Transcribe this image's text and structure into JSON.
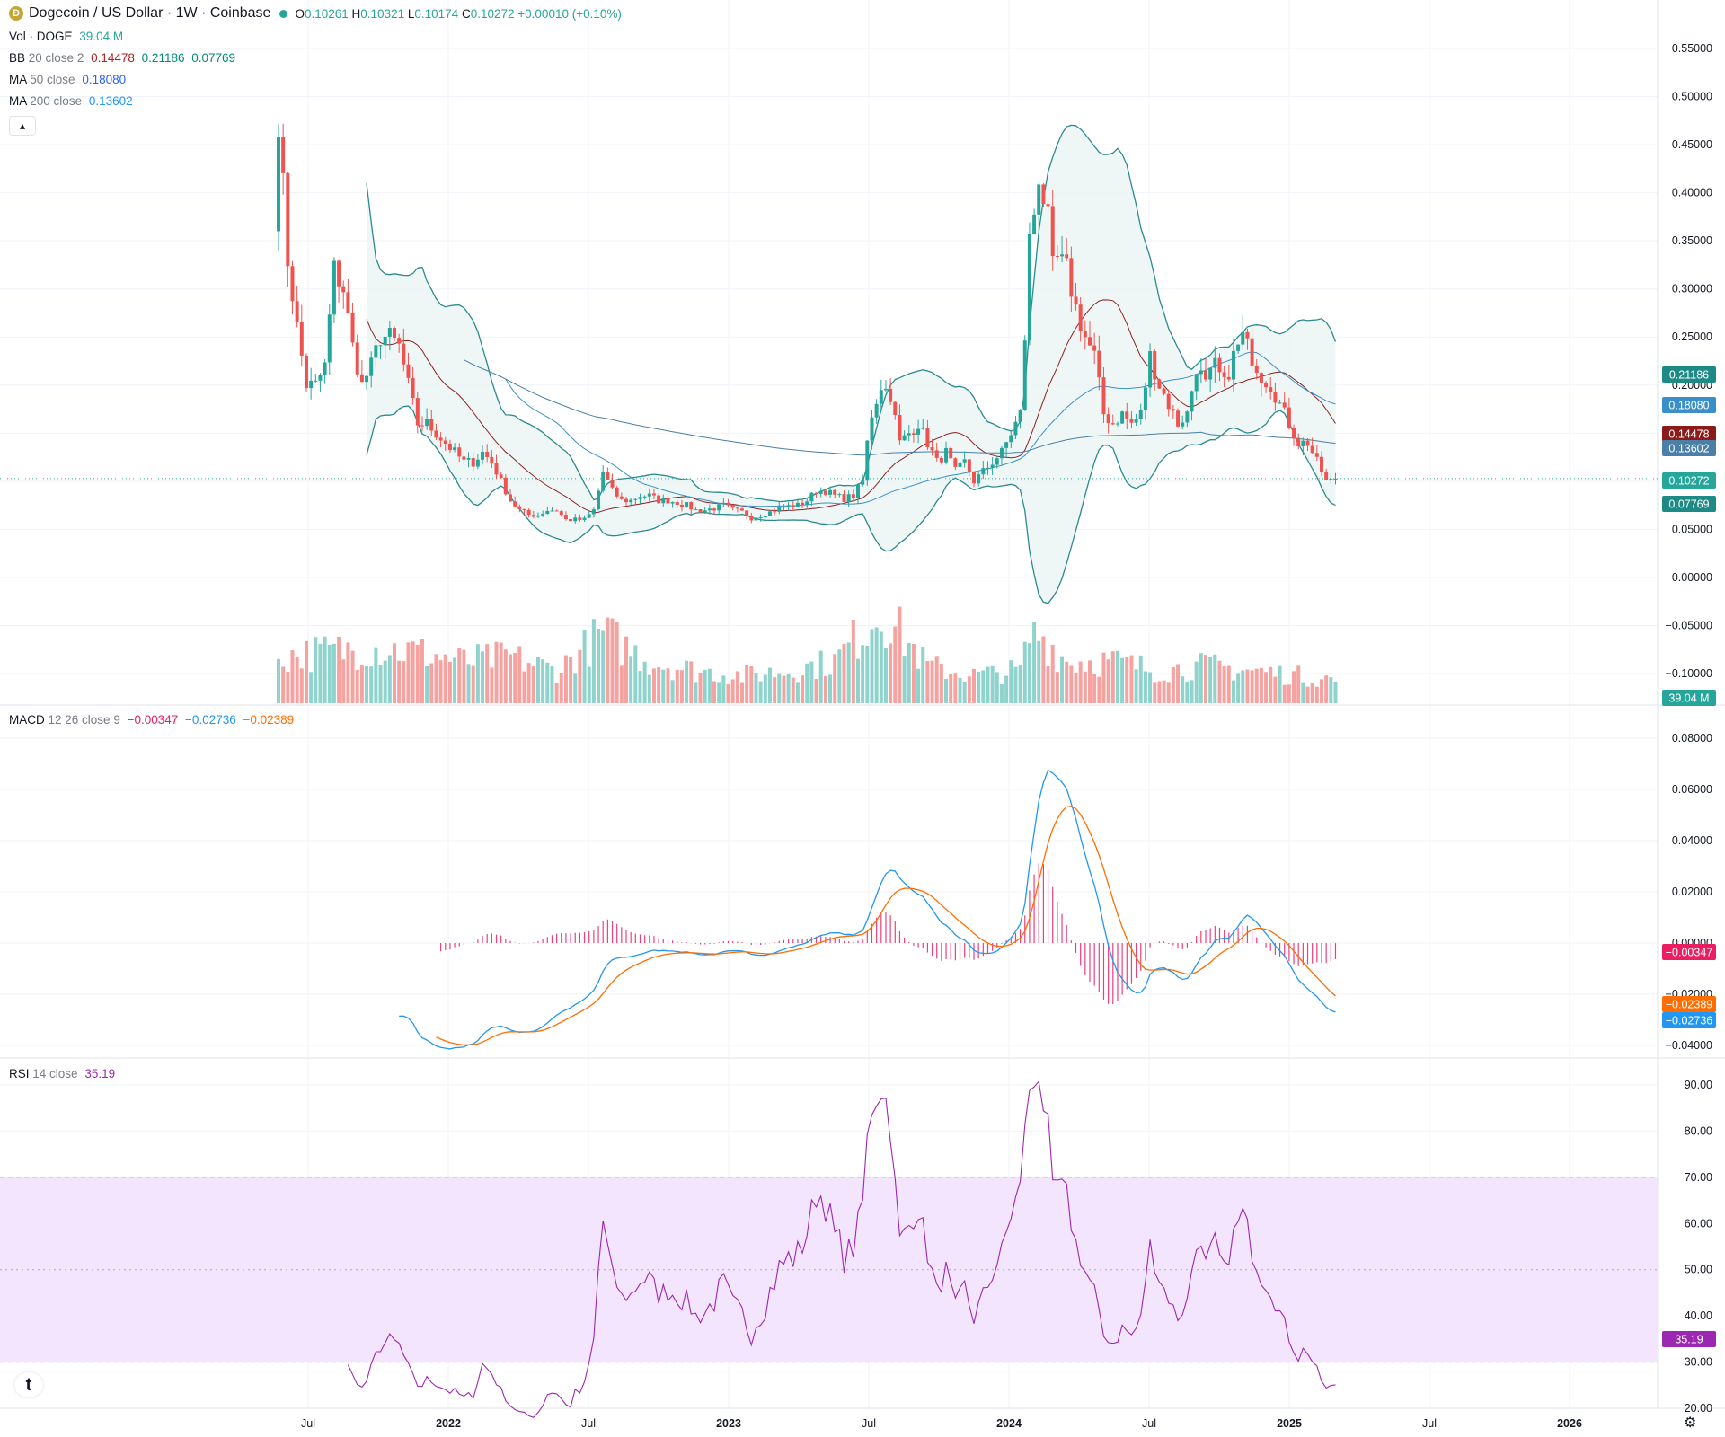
{
  "header": {
    "coin_icon": "dogecoin-icon",
    "title": "Dogecoin / US Dollar · 1W · Coinbase",
    "open_label": "O",
    "open": "0.10261",
    "high_label": "H",
    "high": "0.10321",
    "low_label": "L",
    "low": "0.10174",
    "close_label": "C",
    "close": "0.10272",
    "change": "+0.00010 (+0.10%)"
  },
  "indicators": {
    "vol": {
      "name": "Vol · DOGE",
      "value": "39.04 M"
    },
    "bb": {
      "name": "BB",
      "params": "20 close 2",
      "basis": "0.14478",
      "upper": "0.21186",
      "lower": "0.07769"
    },
    "ma50": {
      "name": "MA",
      "params": "50 close",
      "value": "0.18080"
    },
    "ma200": {
      "name": "MA",
      "params": "200 close",
      "value": "0.13602"
    },
    "macd": {
      "name": "MACD",
      "params": "12 26 close 9",
      "hist": "−0.00347",
      "macd": "−0.02736",
      "signal": "−0.02389"
    },
    "rsi": {
      "name": "RSI",
      "params": "14 close",
      "value": "35.19"
    }
  },
  "collapse_icon": "chevron-up-icon",
  "logo_icon": "tradingview-logo-icon",
  "settings_icon": "gear-icon",
  "colors": {
    "up": "#26a69a",
    "down": "#ef5350",
    "bb_band": "#2a8a8e",
    "bb_basis": "#8b2020",
    "ma50": "#2962ff",
    "ma200": "#2196f3",
    "macd": "#2196f3",
    "signal": "#ff6d00",
    "hist": "#e91e63",
    "rsi": "#9c27b0",
    "rsi_band": "#f3e5fd"
  },
  "chart_data": {
    "type": "candlestick",
    "x_ticks": [
      "Jul",
      "2022",
      "Jul",
      "2023",
      "Jul",
      "2024",
      "Jul",
      "2025",
      "Jul",
      "2026"
    ],
    "price_axis": {
      "min": -0.1,
      "max": 0.55,
      "ticks": [
        "0.55000",
        "0.50000",
        "0.45000",
        "0.40000",
        "0.35000",
        "0.30000",
        "0.25000",
        "0.20000",
        "0.15000",
        "0.10000",
        "0.05000",
        "0.00000",
        "−0.05000",
        "−0.10000"
      ]
    },
    "price_labels": {
      "bb_upper": "0.21186",
      "ma50": "0.18080",
      "bb_basis": "0.14478",
      "ma200": "0.13602",
      "last": "0.10272",
      "bb_lower": "0.07769",
      "volume": "39.04 M"
    },
    "macd_axis": {
      "min": -0.04,
      "max": 0.08,
      "ticks": [
        "0.08000",
        "0.06000",
        "0.04000",
        "0.02000",
        "0.00000",
        "−0.02000",
        "−0.04000"
      ]
    },
    "macd_labels": {
      "hist": "−0.00347",
      "signal": "−0.02389",
      "macd": "−0.02736"
    },
    "rsi_axis": {
      "min": 20,
      "max": 90,
      "ticks": [
        "90.00",
        "80.00",
        "70.00",
        "60.00",
        "50.00",
        "40.00",
        "30.00",
        "20.00"
      ],
      "band": [
        30,
        70
      ]
    },
    "rsi_label": "35.19",
    "close_anchors": [
      [
        0,
        0.48
      ],
      [
        2,
        0.33
      ],
      [
        4,
        0.26
      ],
      [
        6,
        0.2
      ],
      [
        8,
        0.2
      ],
      [
        10,
        0.22
      ],
      [
        12,
        0.32
      ],
      [
        14,
        0.3
      ],
      [
        16,
        0.24
      ],
      [
        18,
        0.2
      ],
      [
        20,
        0.22
      ],
      [
        22,
        0.25
      ],
      [
        24,
        0.25
      ],
      [
        26,
        0.24
      ],
      [
        28,
        0.2
      ],
      [
        30,
        0.16
      ],
      [
        32,
        0.16
      ],
      [
        34,
        0.15
      ],
      [
        36,
        0.14
      ],
      [
        38,
        0.13
      ],
      [
        40,
        0.12
      ],
      [
        42,
        0.12
      ],
      [
        44,
        0.13
      ],
      [
        46,
        0.12
      ],
      [
        48,
        0.1
      ],
      [
        50,
        0.08
      ],
      [
        52,
        0.07
      ],
      [
        54,
        0.065
      ],
      [
        56,
        0.065
      ],
      [
        58,
        0.07
      ],
      [
        60,
        0.07
      ],
      [
        62,
        0.06
      ],
      [
        64,
        0.06
      ],
      [
        66,
        0.06
      ],
      [
        68,
        0.07
      ],
      [
        70,
        0.11
      ],
      [
        72,
        0.09
      ],
      [
        74,
        0.08
      ],
      [
        76,
        0.08
      ],
      [
        78,
        0.085
      ],
      [
        80,
        0.085
      ],
      [
        82,
        0.08
      ],
      [
        84,
        0.08
      ],
      [
        86,
        0.078
      ],
      [
        88,
        0.075
      ],
      [
        90,
        0.07
      ],
      [
        92,
        0.07
      ],
      [
        94,
        0.072
      ],
      [
        96,
        0.075
      ],
      [
        98,
        0.07
      ],
      [
        100,
        0.068
      ],
      [
        102,
        0.062
      ],
      [
        104,
        0.065
      ],
      [
        106,
        0.068
      ],
      [
        108,
        0.072
      ],
      [
        110,
        0.074
      ],
      [
        112,
        0.075
      ],
      [
        114,
        0.08
      ],
      [
        116,
        0.09
      ],
      [
        118,
        0.09
      ],
      [
        120,
        0.085
      ],
      [
        122,
        0.082
      ],
      [
        124,
        0.085
      ],
      [
        126,
        0.1
      ],
      [
        127,
        0.14
      ],
      [
        128,
        0.17
      ],
      [
        130,
        0.2
      ],
      [
        132,
        0.19
      ],
      [
        134,
        0.14
      ],
      [
        136,
        0.15
      ],
      [
        138,
        0.16
      ],
      [
        140,
        0.14
      ],
      [
        142,
        0.12
      ],
      [
        144,
        0.13
      ],
      [
        146,
        0.11
      ],
      [
        148,
        0.12
      ],
      [
        150,
        0.1
      ],
      [
        152,
        0.11
      ],
      [
        154,
        0.12
      ],
      [
        156,
        0.13
      ],
      [
        158,
        0.15
      ],
      [
        160,
        0.17
      ],
      [
        161,
        0.25
      ],
      [
        162,
        0.35
      ],
      [
        163,
        0.38
      ],
      [
        164,
        0.42
      ],
      [
        166,
        0.37
      ],
      [
        167,
        0.32
      ],
      [
        168,
        0.33
      ],
      [
        170,
        0.32
      ],
      [
        172,
        0.28
      ],
      [
        174,
        0.25
      ],
      [
        176,
        0.23
      ],
      [
        178,
        0.17
      ],
      [
        180,
        0.16
      ],
      [
        182,
        0.17
      ],
      [
        184,
        0.16
      ],
      [
        186,
        0.17
      ],
      [
        188,
        0.23
      ],
      [
        190,
        0.2
      ],
      [
        192,
        0.18
      ],
      [
        194,
        0.16
      ],
      [
        196,
        0.17
      ],
      [
        198,
        0.22
      ],
      [
        200,
        0.2
      ],
      [
        202,
        0.22
      ],
      [
        204,
        0.2
      ],
      [
        206,
        0.23
      ],
      [
        208,
        0.25
      ],
      [
        210,
        0.23
      ],
      [
        212,
        0.21
      ],
      [
        214,
        0.2
      ],
      [
        216,
        0.18
      ],
      [
        218,
        0.16
      ],
      [
        220,
        0.14
      ],
      [
        222,
        0.14
      ],
      [
        224,
        0.12
      ],
      [
        226,
        0.1
      ],
      [
        228,
        0.1
      ]
    ],
    "volume_anchors": [
      [
        0,
        0.5
      ],
      [
        10,
        0.55
      ],
      [
        20,
        0.6
      ],
      [
        30,
        0.55
      ],
      [
        40,
        0.45
      ],
      [
        50,
        0.5
      ],
      [
        60,
        0.35
      ],
      [
        70,
        0.75
      ],
      [
        80,
        0.45
      ],
      [
        90,
        0.35
      ],
      [
        100,
        0.3
      ],
      [
        110,
        0.35
      ],
      [
        120,
        0.45
      ],
      [
        130,
        1.0
      ],
      [
        140,
        0.4
      ],
      [
        150,
        0.3
      ],
      [
        160,
        0.35
      ],
      [
        162,
        0.7
      ],
      [
        164,
        0.75
      ],
      [
        170,
        0.45
      ],
      [
        180,
        0.45
      ],
      [
        190,
        0.35
      ],
      [
        200,
        0.4
      ],
      [
        210,
        0.35
      ],
      [
        220,
        0.3
      ],
      [
        228,
        0.25
      ]
    ],
    "n_weeks": 229,
    "last_close": 0.10272
  }
}
